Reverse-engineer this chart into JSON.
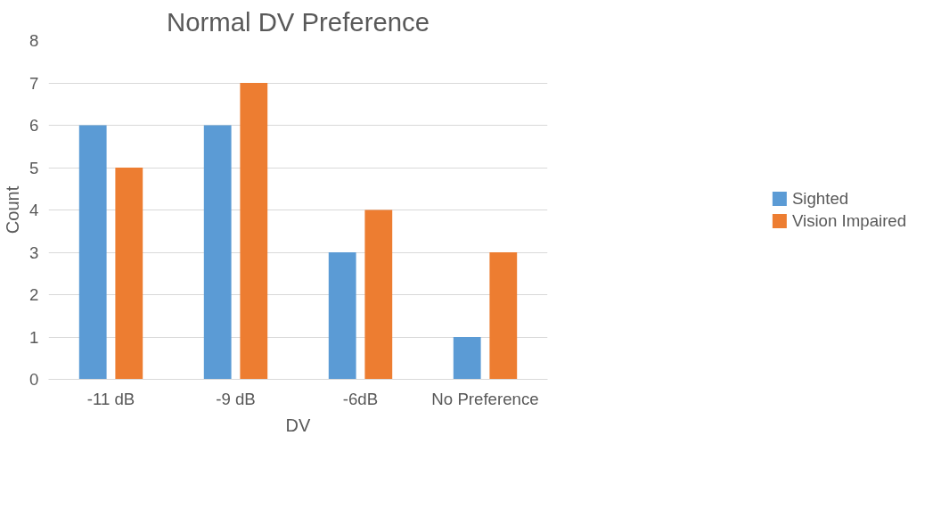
{
  "chart_data": {
    "type": "bar",
    "title": "Normal DV Preference",
    "xlabel": "DV",
    "ylabel": "Count",
    "categories": [
      "-11 dB",
      "-9 dB",
      "-6dB",
      "No Preference"
    ],
    "series": [
      {
        "name": "Sighted",
        "color": "#5b9bd5",
        "values": [
          6,
          6,
          3,
          1
        ]
      },
      {
        "name": "Vision Impaired",
        "color": "#ed7d31",
        "values": [
          5,
          7,
          4,
          3
        ]
      }
    ],
    "ylim": [
      0,
      8
    ],
    "yticks": [
      0,
      1,
      2,
      3,
      4,
      5,
      6,
      7,
      8
    ],
    "grid": "y",
    "legend": "right"
  }
}
